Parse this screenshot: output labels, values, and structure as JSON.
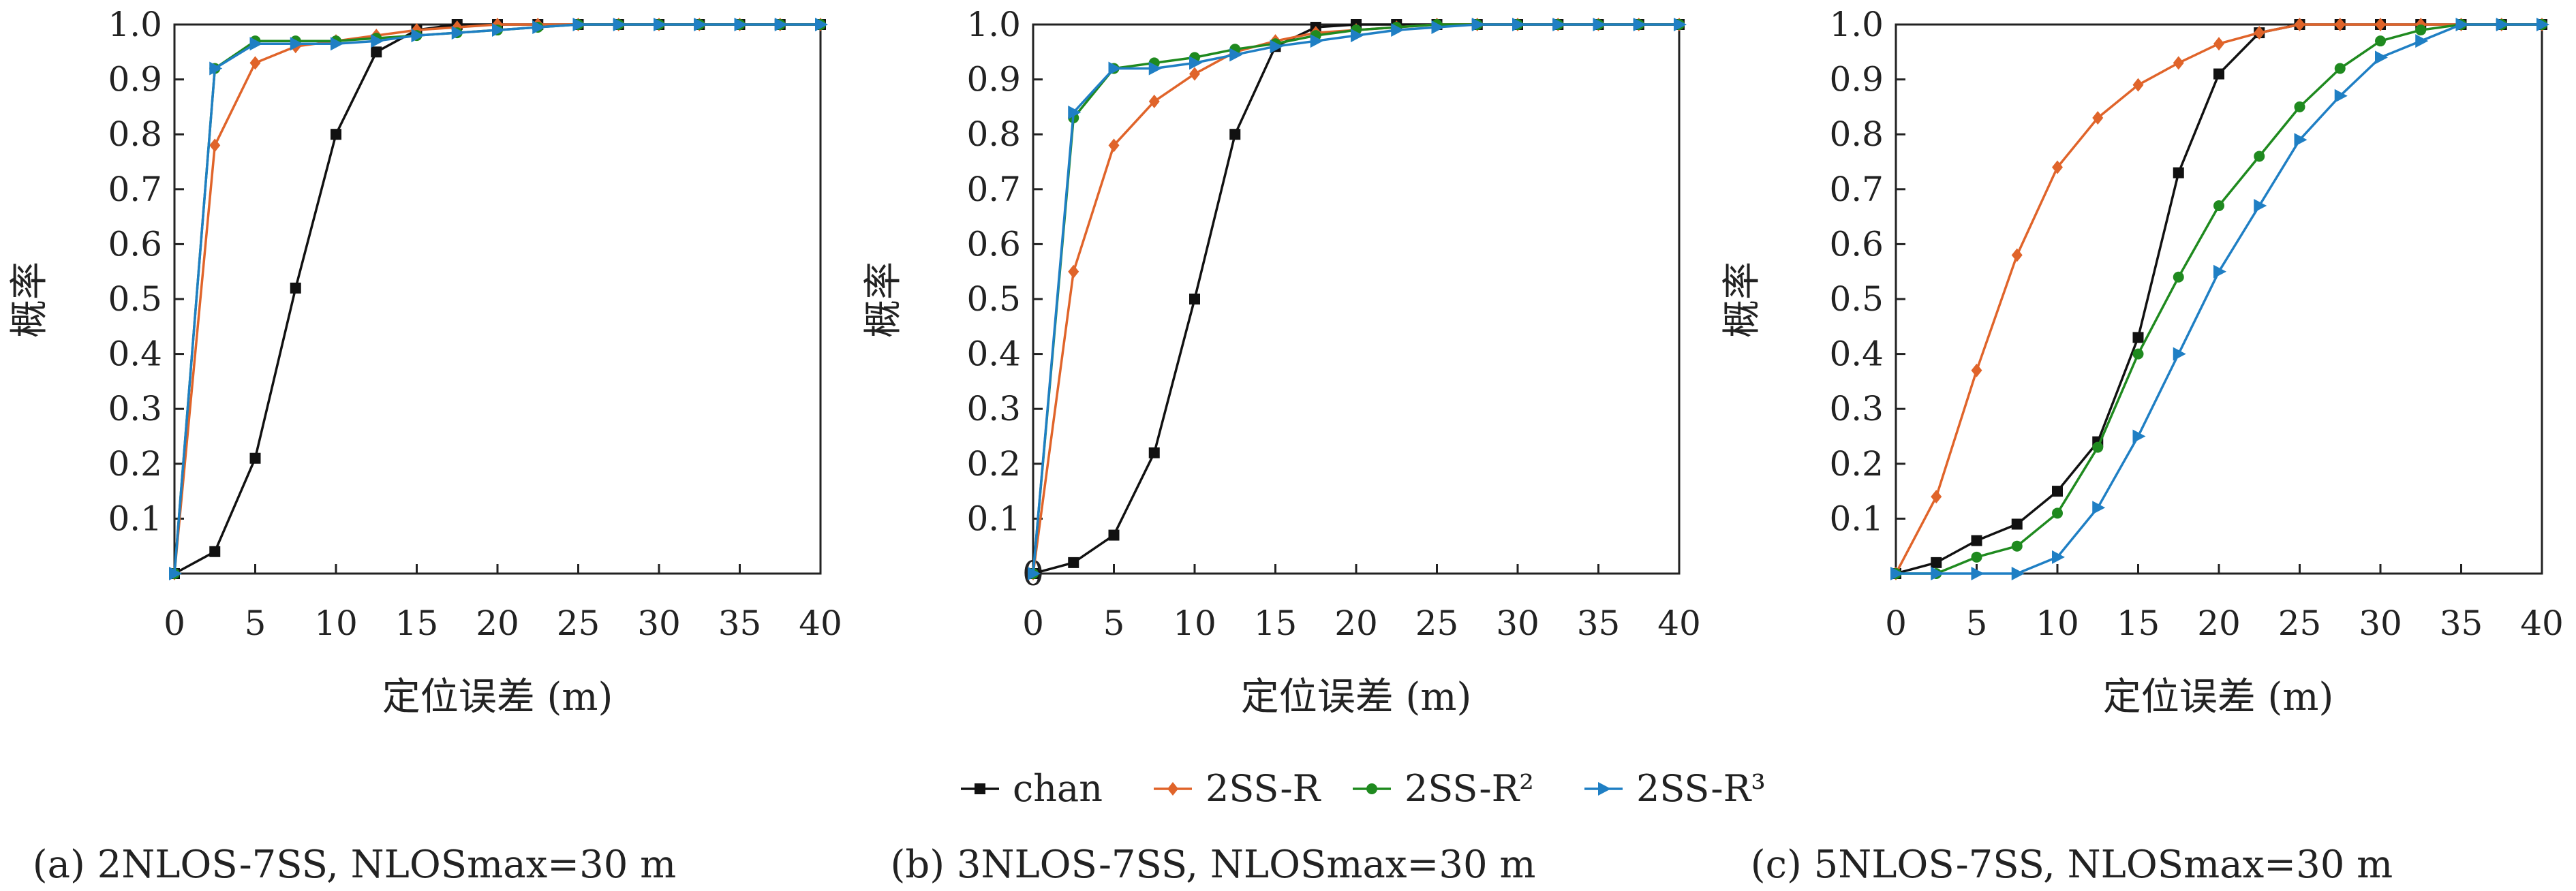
{
  "colors": {
    "chan": "#111111",
    "2SS-R": "#E0642A",
    "2SS-R2": "#1F8A1F",
    "2SS-R3": "#1F7FC4"
  },
  "legend": {
    "items": [
      {
        "label": "chan",
        "marker": "square",
        "color_key": "chan"
      },
      {
        "label": "2SS-R",
        "marker": "diamond",
        "color_key": "2SS-R"
      },
      {
        "label": "2SS-R²",
        "marker": "circle",
        "color_key": "2SS-R2"
      },
      {
        "label": "2SS-R³",
        "marker": "triangle-right",
        "color_key": "2SS-R3"
      }
    ],
    "placement": "bottom-center"
  },
  "chart_data": [
    {
      "type": "line",
      "caption": "(a) 2NLOS-7SS, NLOSmax=30 m",
      "xlabel": "定位误差 (m)",
      "ylabel": "概率",
      "xlim": [
        0,
        40
      ],
      "ylim": [
        0,
        1.0
      ],
      "xticks": [
        "0",
        "5",
        "10",
        "15",
        "20",
        "25",
        "30",
        "35",
        "40"
      ],
      "yticks": [
        "0.1",
        "0.2",
        "0.3",
        "0.4",
        "0.5",
        "0.6",
        "0.7",
        "0.8",
        "0.9",
        "1.0"
      ],
      "grid": false,
      "x": [
        0,
        2.5,
        5,
        7.5,
        10,
        12.5,
        15,
        17.5,
        20,
        22.5,
        25,
        27.5,
        30,
        32.5,
        35,
        37.5,
        40
      ],
      "series": [
        {
          "name": "chan",
          "values": [
            0,
            0.04,
            0.21,
            0.52,
            0.8,
            0.95,
            0.99,
            1.0,
            1.0,
            1.0,
            1.0,
            1.0,
            1.0,
            1.0,
            1.0,
            1.0,
            1.0
          ]
        },
        {
          "name": "2SS-R",
          "values": [
            0,
            0.78,
            0.93,
            0.96,
            0.97,
            0.98,
            0.99,
            0.995,
            1.0,
            1.0,
            1.0,
            1.0,
            1.0,
            1.0,
            1.0,
            1.0,
            1.0
          ]
        },
        {
          "name": "2SS-R²",
          "values": [
            0,
            0.92,
            0.97,
            0.97,
            0.97,
            0.975,
            0.98,
            0.985,
            0.99,
            0.995,
            1.0,
            1.0,
            1.0,
            1.0,
            1.0,
            1.0,
            1.0
          ]
        },
        {
          "name": "2SS-R³",
          "values": [
            0,
            0.92,
            0.965,
            0.965,
            0.965,
            0.97,
            0.98,
            0.985,
            0.99,
            0.995,
            1.0,
            1.0,
            1.0,
            1.0,
            1.0,
            1.0,
            1.0
          ]
        }
      ]
    },
    {
      "type": "line",
      "caption": "(b) 3NLOS-7SS, NLOSmax=30 m",
      "xlabel": "定位误差 (m)",
      "ylabel": "概率",
      "xlim": [
        0,
        40
      ],
      "ylim": [
        0,
        1.0
      ],
      "xticks": [
        "0",
        "5",
        "10",
        "15",
        "20",
        "25",
        "30",
        "35",
        "40"
      ],
      "yticks": [
        "0.1",
        "0.2",
        "0.3",
        "0.4",
        "0.5",
        "0.6",
        "0.7",
        "0.8",
        "0.9",
        "1.0"
      ],
      "origin_label": "0",
      "grid": false,
      "x": [
        0,
        2.5,
        5,
        7.5,
        10,
        12.5,
        15,
        17.5,
        20,
        22.5,
        25,
        27.5,
        30,
        32.5,
        35,
        37.5,
        40
      ],
      "series": [
        {
          "name": "chan",
          "values": [
            0,
            0.02,
            0.07,
            0.22,
            0.5,
            0.8,
            0.96,
            0.995,
            1.0,
            1.0,
            1.0,
            1.0,
            1.0,
            1.0,
            1.0,
            1.0,
            1.0
          ]
        },
        {
          "name": "2SS-R",
          "values": [
            0,
            0.55,
            0.78,
            0.86,
            0.91,
            0.95,
            0.97,
            0.985,
            0.99,
            0.995,
            1.0,
            1.0,
            1.0,
            1.0,
            1.0,
            1.0,
            1.0
          ]
        },
        {
          "name": "2SS-R²",
          "values": [
            0,
            0.83,
            0.92,
            0.93,
            0.94,
            0.955,
            0.965,
            0.98,
            0.99,
            0.995,
            1.0,
            1.0,
            1.0,
            1.0,
            1.0,
            1.0,
            1.0
          ]
        },
        {
          "name": "2SS-R³",
          "values": [
            0,
            0.84,
            0.92,
            0.92,
            0.93,
            0.945,
            0.96,
            0.97,
            0.98,
            0.99,
            0.995,
            1.0,
            1.0,
            1.0,
            1.0,
            1.0,
            1.0
          ]
        }
      ]
    },
    {
      "type": "line",
      "caption": "(c) 5NLOS-7SS, NLOSmax=30 m",
      "xlabel": "定位误差 (m)",
      "ylabel": "概率",
      "xlim": [
        0,
        40
      ],
      "ylim": [
        0,
        1.0
      ],
      "xticks": [
        "0",
        "5",
        "10",
        "15",
        "20",
        "25",
        "30",
        "35",
        "40"
      ],
      "yticks": [
        "0.1",
        "0.2",
        "0.3",
        "0.4",
        "0.5",
        "0.6",
        "0.7",
        "0.8",
        "0.9",
        "1.0"
      ],
      "grid": false,
      "x": [
        0,
        2.5,
        5,
        7.5,
        10,
        12.5,
        15,
        17.5,
        20,
        22.5,
        25,
        27.5,
        30,
        32.5,
        35,
        37.5,
        40
      ],
      "series": [
        {
          "name": "chan",
          "values": [
            0,
            0.02,
            0.06,
            0.09,
            0.15,
            0.24,
            0.43,
            0.73,
            0.91,
            0.985,
            1.0,
            1.0,
            1.0,
            1.0,
            1.0,
            1.0,
            1.0
          ]
        },
        {
          "name": "2SS-R",
          "values": [
            0,
            0.14,
            0.37,
            0.58,
            0.74,
            0.83,
            0.89,
            0.93,
            0.965,
            0.985,
            1.0,
            1.0,
            1.0,
            1.0,
            1.0,
            1.0,
            1.0
          ]
        },
        {
          "name": "2SS-R²",
          "values": [
            0,
            0.0,
            0.03,
            0.05,
            0.11,
            0.23,
            0.4,
            0.54,
            0.67,
            0.76,
            0.85,
            0.92,
            0.97,
            0.99,
            1.0,
            1.0,
            1.0
          ]
        },
        {
          "name": "2SS-R³",
          "values": [
            0,
            0.0,
            0.0,
            0.0,
            0.03,
            0.12,
            0.25,
            0.4,
            0.55,
            0.67,
            0.79,
            0.87,
            0.94,
            0.97,
            1.0,
            1.0,
            1.0
          ]
        }
      ]
    }
  ]
}
